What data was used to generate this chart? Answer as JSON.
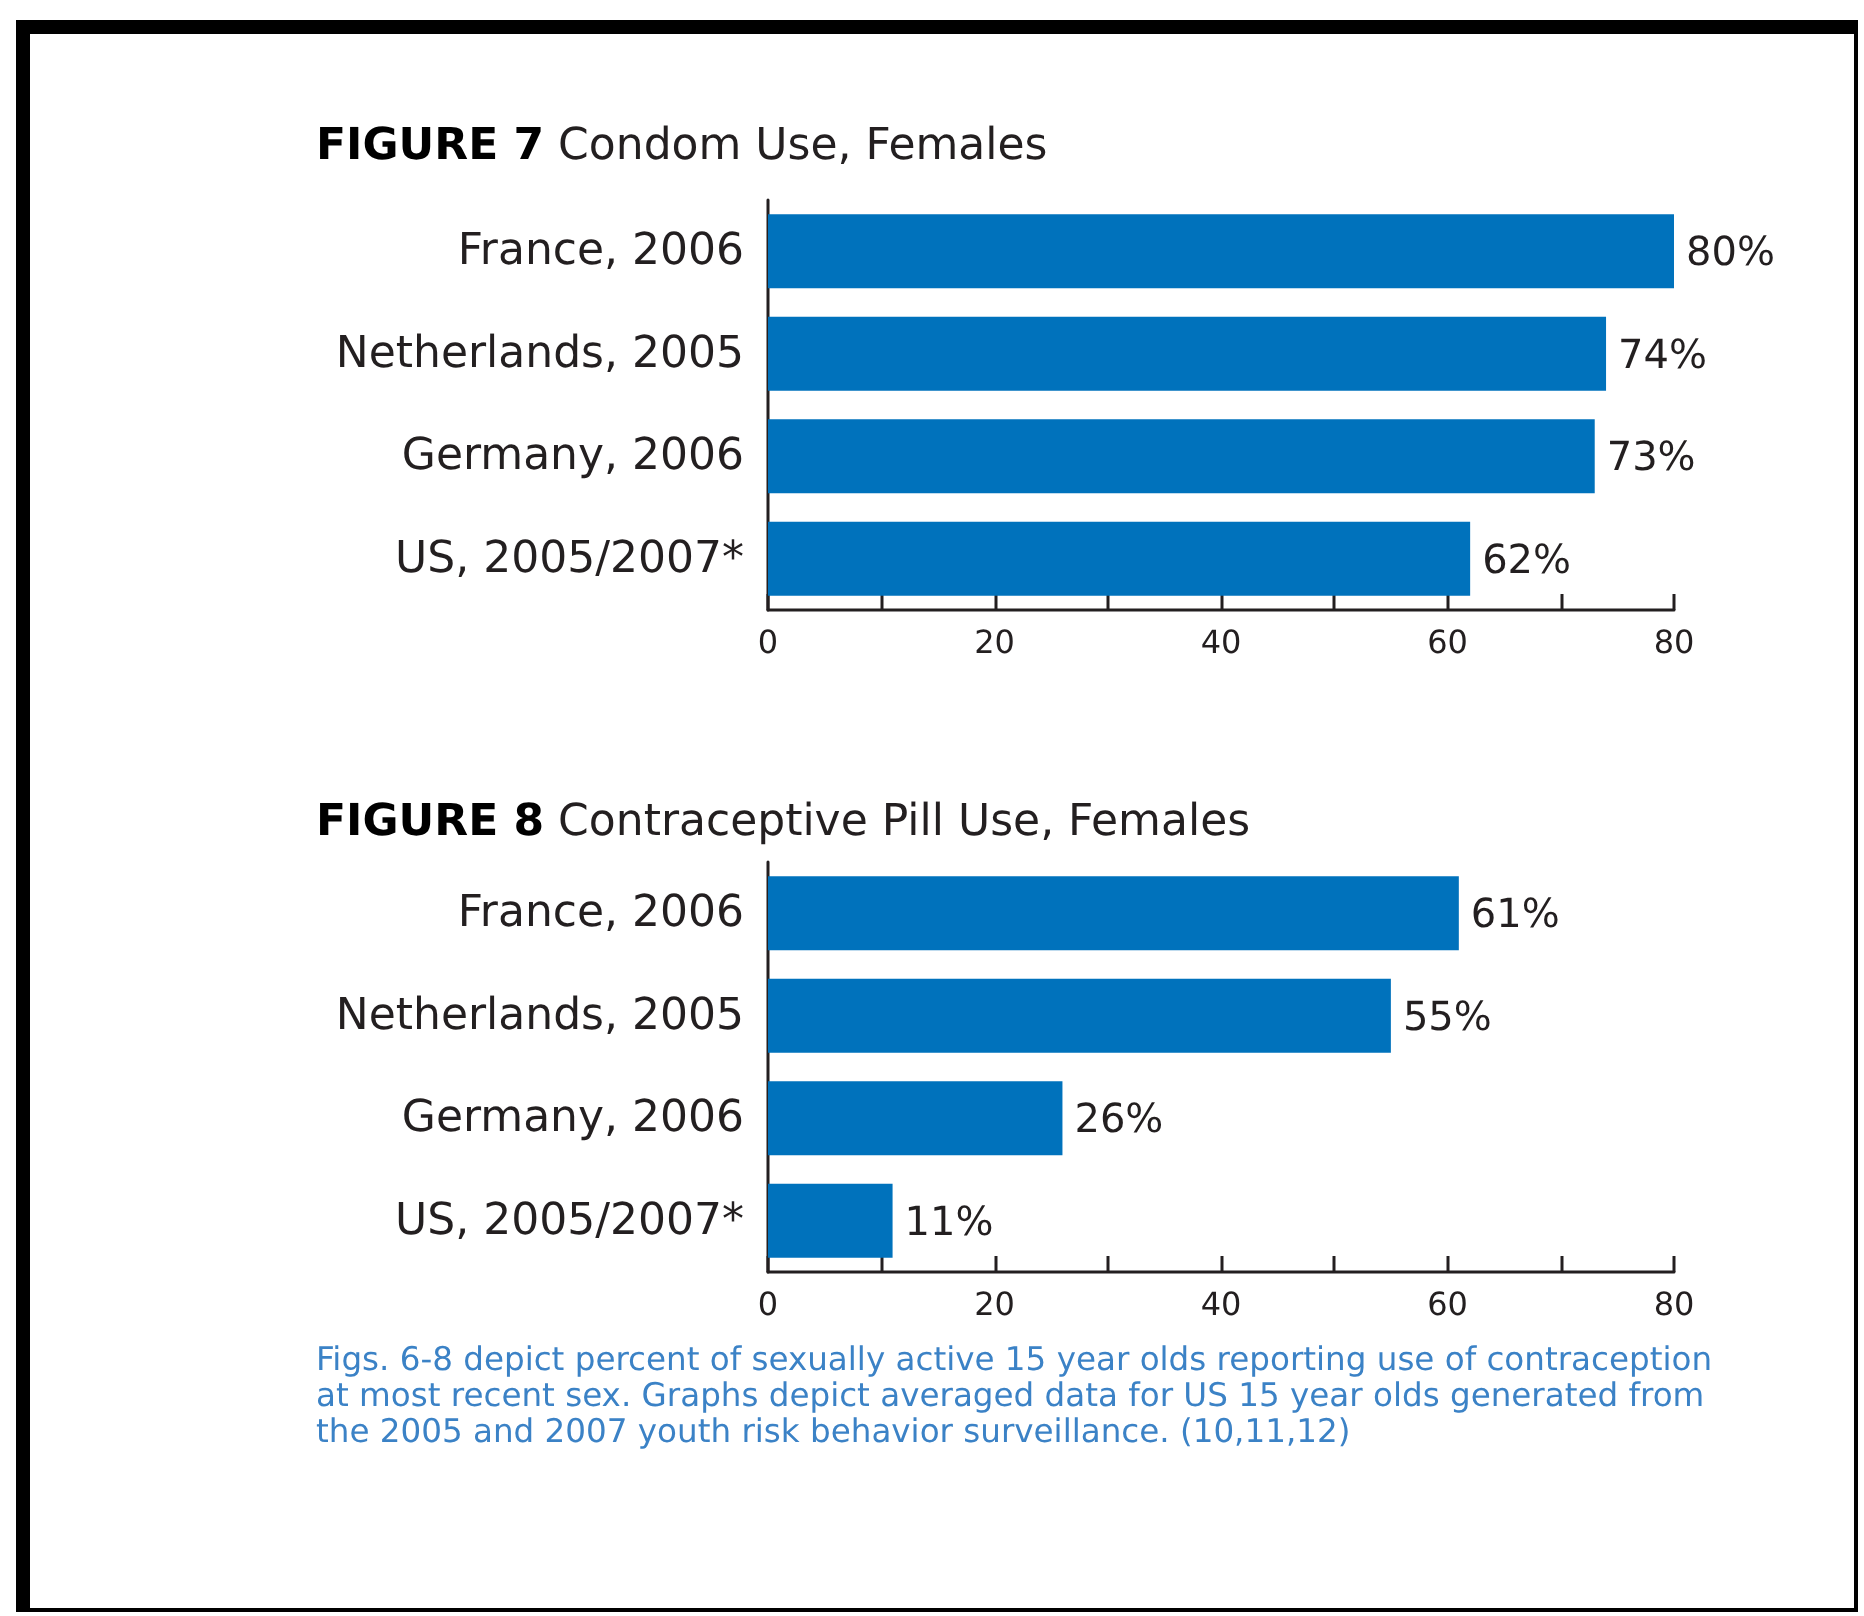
{
  "chart_data": [
    {
      "type": "bar",
      "orientation": "horizontal",
      "title": "FIGURE 7 Condom Use, Females",
      "categories": [
        "France, 2006",
        "Netherlands, 2005",
        "Germany, 2006",
        "US, 2005/2007*"
      ],
      "values": [
        80,
        74,
        73,
        62
      ],
      "value_labels": [
        "80%",
        "74%",
        "73%",
        "62%"
      ],
      "color": "#0072bc",
      "xlim": [
        0,
        80
      ],
      "xticks": [
        0,
        {
          "value": 10,
          "label": null
        },
        20,
        {
          "value": 30,
          "label": null
        },
        40,
        {
          "value": 50,
          "label": null
        },
        60,
        {
          "value": 70,
          "label": null
        },
        80
      ]
    },
    {
      "type": "bar",
      "orientation": "horizontal",
      "title": "FIGURE 8 Contraceptive Pill Use, Females",
      "categories": [
        "France, 2006",
        "Netherlands, 2005",
        "Germany, 2006",
        "US, 2005/2007*"
      ],
      "values": [
        61,
        55,
        26,
        11
      ],
      "value_labels": [
        "61%",
        "55%",
        "26%",
        "11%"
      ],
      "color": "#0072bc",
      "xlim": [
        0,
        80
      ],
      "xticks": [
        0,
        {
          "value": 10,
          "label": null
        },
        20,
        {
          "value": 30,
          "label": null
        },
        40,
        {
          "value": 50,
          "label": null
        },
        60,
        {
          "value": 70,
          "label": null
        },
        80
      ],
      "annotations": [
        "Figs. 6-8 depict percent of sexually active 15 year olds reporting use of contraception at most recent sex. Graphs depict averaged data for US 15 year olds generated from the 2005 and 2007 youth risk behavior surveillance. (10,11,12)"
      ]
    }
  ]
}
